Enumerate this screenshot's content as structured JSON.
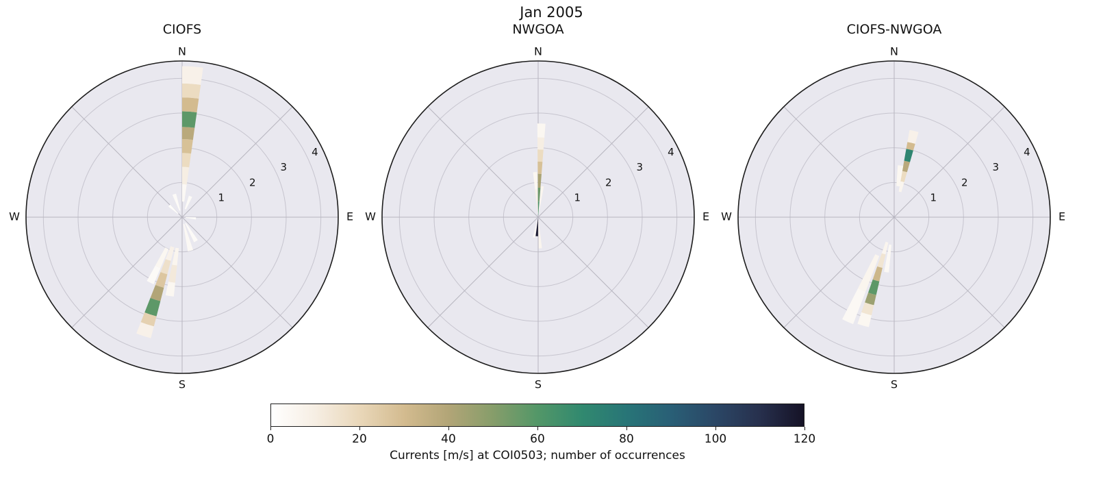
{
  "figure": {
    "title": "Jan 2005"
  },
  "compass": {
    "north": "N",
    "east": "E",
    "south": "S",
    "west": "W"
  },
  "radial_ticks": [
    1,
    2,
    3,
    4
  ],
  "polar": {
    "r_max": 4.5,
    "rlabel_angle_deg": 64,
    "background": "#e9e8ef",
    "grid_color": "#c6c4ce",
    "spoke_color": "#b7b5bf",
    "edge_color": "#1c1c1c"
  },
  "colormap": {
    "min": 0,
    "max": 120,
    "stops": [
      {
        "v": 0,
        "c": "#ffffff"
      },
      {
        "v": 10,
        "c": "#f6eee3"
      },
      {
        "v": 20,
        "c": "#e9d7b9"
      },
      {
        "v": 30,
        "c": "#d3bb8f"
      },
      {
        "v": 40,
        "c": "#b2a577"
      },
      {
        "v": 50,
        "c": "#869d6a"
      },
      {
        "v": 60,
        "c": "#539768"
      },
      {
        "v": 70,
        "c": "#31896f"
      },
      {
        "v": 80,
        "c": "#287577"
      },
      {
        "v": 90,
        "c": "#295f76"
      },
      {
        "v": 100,
        "c": "#2b4766"
      },
      {
        "v": 110,
        "c": "#27304d"
      },
      {
        "v": 120,
        "c": "#151226"
      }
    ]
  },
  "colorbar": {
    "label": "Currents [m/s] at COI0503; number of occurrences",
    "ticks": [
      0,
      20,
      40,
      60,
      80,
      100,
      120
    ]
  },
  "chart_data": [
    {
      "type": "bar",
      "projection": "polar",
      "title": "CIOFS",
      "angular_axis": "current direction (compass, N at top)",
      "radial_axis": "Currents [m/s]",
      "radial_range": [
        0,
        4.5
      ],
      "color_scale": "number of occurrences (0-120)",
      "petals": [
        {
          "dir": 4,
          "width": 8,
          "segments": [
            {
              "r0": 0.45,
              "r1": 0.95,
              "v": 4
            },
            {
              "r0": 0.95,
              "r1": 1.45,
              "v": 10
            },
            {
              "r0": 1.45,
              "r1": 1.85,
              "v": 18
            },
            {
              "r0": 1.85,
              "r1": 2.25,
              "v": 28
            },
            {
              "r0": 2.25,
              "r1": 2.6,
              "v": 38
            },
            {
              "r0": 2.6,
              "r1": 3.05,
              "v": 58
            },
            {
              "r0": 3.05,
              "r1": 3.45,
              "v": 30
            },
            {
              "r0": 3.45,
              "r1": 3.85,
              "v": 18
            },
            {
              "r0": 3.85,
              "r1": 4.35,
              "v": 8
            }
          ]
        },
        {
          "dir": 198,
          "width": 7,
          "segments": [
            {
              "r0": 0.9,
              "r1": 1.3,
              "v": 8
            },
            {
              "r0": 1.3,
              "r1": 1.7,
              "v": 16
            },
            {
              "r0": 1.7,
              "r1": 2.1,
              "v": 26
            },
            {
              "r0": 2.1,
              "r1": 2.5,
              "v": 40
            },
            {
              "r0": 2.5,
              "r1": 2.95,
              "v": 58
            },
            {
              "r0": 2.95,
              "r1": 3.25,
              "v": 22
            },
            {
              "r0": 3.25,
              "r1": 3.6,
              "v": 8
            }
          ]
        },
        {
          "dir": 189,
          "width": 6,
          "segments": [
            {
              "r0": 0.9,
              "r1": 1.4,
              "v": 6
            },
            {
              "r0": 1.4,
              "r1": 1.9,
              "v": 12
            },
            {
              "r0": 1.9,
              "r1": 2.3,
              "v": 5
            }
          ]
        },
        {
          "dir": 206,
          "width": 6,
          "segments": [
            {
              "r0": 1.0,
              "r1": 1.6,
              "v": 5
            },
            {
              "r0": 1.6,
              "r1": 2.1,
              "v": 3
            }
          ]
        },
        {
          "dir": 150,
          "width": 9,
          "segments": [
            {
              "r0": 0.2,
              "r1": 0.8,
              "v": 3
            }
          ]
        },
        {
          "dir": 166,
          "width": 9,
          "segments": [
            {
              "r0": 0.2,
              "r1": 1.0,
              "v": 4
            }
          ]
        },
        {
          "dir": 341,
          "width": 9,
          "segments": [
            {
              "r0": 0.2,
              "r1": 0.7,
              "v": 3
            }
          ]
        },
        {
          "dir": 312,
          "width": 9,
          "segments": [
            {
              "r0": 0.15,
              "r1": 0.5,
              "v": 2
            }
          ]
        },
        {
          "dir": 22,
          "width": 9,
          "segments": [
            {
              "r0": 0.25,
              "r1": 0.65,
              "v": 3
            }
          ]
        },
        {
          "dir": 95,
          "width": 9,
          "segments": [
            {
              "r0": 0.1,
              "r1": 0.4,
              "v": 2
            }
          ]
        }
      ]
    },
    {
      "type": "bar",
      "projection": "polar",
      "title": "NWGOA",
      "angular_axis": "current direction (compass, N at top)",
      "radial_axis": "Currents [m/s]",
      "radial_range": [
        0,
        4.5
      ],
      "color_scale": "number of occurrences (0-120)",
      "petals": [
        {
          "dir": 2,
          "width": 5,
          "segments": [
            {
              "r0": 0.05,
              "r1": 0.45,
              "v": 62
            },
            {
              "r0": 0.45,
              "r1": 0.85,
              "v": 55
            },
            {
              "r0": 0.85,
              "r1": 1.25,
              "v": 42
            },
            {
              "r0": 1.25,
              "r1": 1.6,
              "v": 28
            },
            {
              "r0": 1.6,
              "r1": 1.95,
              "v": 18
            },
            {
              "r0": 1.95,
              "r1": 2.3,
              "v": 10
            },
            {
              "r0": 2.3,
              "r1": 2.7,
              "v": 5
            }
          ]
        },
        {
          "dir": 356,
          "width": 5,
          "segments": [
            {
              "r0": 0.1,
              "r1": 0.8,
              "v": 8
            },
            {
              "r0": 0.8,
              "r1": 1.3,
              "v": 5
            }
          ]
        },
        {
          "dir": 8,
          "width": 5,
          "segments": [
            {
              "r0": 0.2,
              "r1": 0.9,
              "v": 6
            }
          ]
        },
        {
          "dir": 184,
          "width": 7,
          "segments": [
            {
              "r0": 0.05,
              "r1": 0.55,
              "v": 118
            }
          ]
        },
        {
          "dir": 176,
          "width": 6,
          "segments": [
            {
              "r0": 0.1,
              "r1": 0.9,
              "v": 6
            }
          ]
        },
        {
          "dir": 192,
          "width": 6,
          "segments": [
            {
              "r0": 0.1,
              "r1": 0.6,
              "v": 4
            }
          ]
        }
      ]
    },
    {
      "type": "bar",
      "projection": "polar",
      "title": "CIOFS-NWGOA",
      "angular_axis": "current direction (compass, N at top)",
      "radial_axis": "Currents [m/s]",
      "radial_range": [
        0,
        4.5
      ],
      "color_scale": "number of occurrences (0-120)",
      "petals": [
        {
          "dir": 13,
          "width": 6,
          "segments": [
            {
              "r0": 0.75,
              "r1": 1.05,
              "v": 6
            },
            {
              "r0": 1.05,
              "r1": 1.35,
              "v": 18
            },
            {
              "r0": 1.35,
              "r1": 1.65,
              "v": 38
            },
            {
              "r0": 1.65,
              "r1": 2.0,
              "v": 72
            },
            {
              "r0": 2.0,
              "r1": 2.2,
              "v": 30
            },
            {
              "r0": 2.2,
              "r1": 2.55,
              "v": 8
            }
          ]
        },
        {
          "dir": 7,
          "width": 6,
          "segments": [
            {
              "r0": 0.9,
              "r1": 1.5,
              "v": 5
            }
          ]
        },
        {
          "dir": 196,
          "width": 6,
          "segments": [
            {
              "r0": 0.75,
              "r1": 1.1,
              "v": 6
            },
            {
              "r0": 1.1,
              "r1": 1.5,
              "v": 14
            },
            {
              "r0": 1.5,
              "r1": 1.9,
              "v": 32
            },
            {
              "r0": 1.9,
              "r1": 2.3,
              "v": 58
            },
            {
              "r0": 2.3,
              "r1": 2.6,
              "v": 45
            },
            {
              "r0": 2.6,
              "r1": 2.9,
              "v": 14
            },
            {
              "r0": 2.9,
              "r1": 3.25,
              "v": 5
            }
          ]
        },
        {
          "dir": 204,
          "width": 6,
          "segments": [
            {
              "r0": 1.2,
              "r1": 2.3,
              "v": 6
            },
            {
              "r0": 2.3,
              "r1": 3.3,
              "v": 4
            }
          ]
        },
        {
          "dir": 188,
          "width": 5,
          "segments": [
            {
              "r0": 0.8,
              "r1": 1.6,
              "v": 4
            }
          ]
        }
      ]
    }
  ]
}
